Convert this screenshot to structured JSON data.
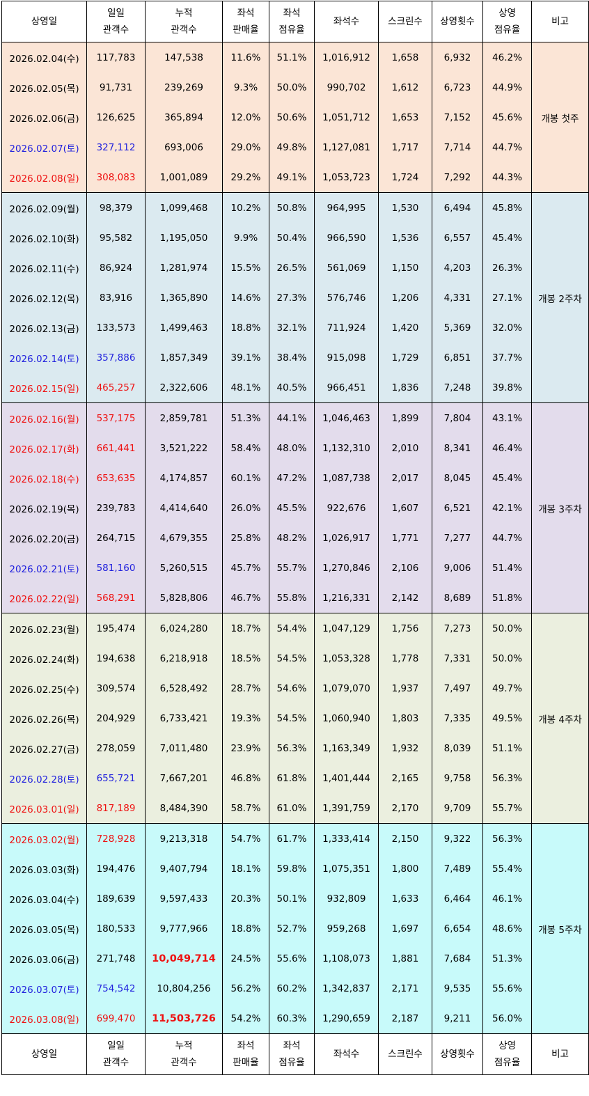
{
  "headers": [
    [
      "상영일"
    ],
    [
      "일일",
      "관객수"
    ],
    [
      "누적",
      "관객수"
    ],
    [
      "좌석",
      "판매율"
    ],
    [
      "좌석",
      "점유율"
    ],
    [
      "좌석수"
    ],
    [
      "스크린수"
    ],
    [
      "상영횟수"
    ],
    [
      "상영",
      "점유율"
    ],
    [
      "비고"
    ]
  ],
  "weeks": [
    {
      "note": "개봉 첫주",
      "color": "#fbe5d6",
      "rows": [
        {
          "date": "2026.02.04(수)",
          "daily": "117,783",
          "cumulative": "147,538",
          "sales_rate": "11.6%",
          "occupancy": "51.1%",
          "seats": "1,016,912",
          "screens": "1,658",
          "shows": "6,932",
          "share": "46.2%",
          "day_style": "weekday"
        },
        {
          "date": "2026.02.05(목)",
          "daily": "91,731",
          "cumulative": "239,269",
          "sales_rate": "9.3%",
          "occupancy": "50.0%",
          "seats": "990,702",
          "screens": "1,612",
          "shows": "6,723",
          "share": "44.9%",
          "day_style": "weekday"
        },
        {
          "date": "2026.02.06(금)",
          "daily": "126,625",
          "cumulative": "365,894",
          "sales_rate": "12.0%",
          "occupancy": "50.6%",
          "seats": "1,051,712",
          "screens": "1,653",
          "shows": "7,152",
          "share": "45.6%",
          "day_style": "weekday"
        },
        {
          "date": "2026.02.07(토)",
          "daily": "327,112",
          "cumulative": "693,006",
          "sales_rate": "29.0%",
          "occupancy": "49.8%",
          "seats": "1,127,081",
          "screens": "1,717",
          "shows": "7,714",
          "share": "44.7%",
          "day_style": "saturday"
        },
        {
          "date": "2026.02.08(일)",
          "daily": "308,083",
          "cumulative": "1,001,089",
          "sales_rate": "29.2%",
          "occupancy": "49.1%",
          "seats": "1,053,723",
          "screens": "1,724",
          "shows": "7,292",
          "share": "44.3%",
          "day_style": "holiday"
        }
      ]
    },
    {
      "note": "개봉 2주차",
      "color": "#dbeaf0",
      "rows": [
        {
          "date": "2026.02.09(월)",
          "daily": "98,379",
          "cumulative": "1,099,468",
          "sales_rate": "10.2%",
          "occupancy": "50.8%",
          "seats": "964,995",
          "screens": "1,530",
          "shows": "6,494",
          "share": "45.8%",
          "day_style": "weekday"
        },
        {
          "date": "2026.02.10(화)",
          "daily": "95,582",
          "cumulative": "1,195,050",
          "sales_rate": "9.9%",
          "occupancy": "50.4%",
          "seats": "966,590",
          "screens": "1,536",
          "shows": "6,557",
          "share": "45.4%",
          "day_style": "weekday"
        },
        {
          "date": "2026.02.11(수)",
          "daily": "86,924",
          "cumulative": "1,281,974",
          "sales_rate": "15.5%",
          "occupancy": "26.5%",
          "seats": "561,069",
          "screens": "1,150",
          "shows": "4,203",
          "share": "26.3%",
          "day_style": "weekday"
        },
        {
          "date": "2026.02.12(목)",
          "daily": "83,916",
          "cumulative": "1,365,890",
          "sales_rate": "14.6%",
          "occupancy": "27.3%",
          "seats": "576,746",
          "screens": "1,206",
          "shows": "4,331",
          "share": "27.1%",
          "day_style": "weekday"
        },
        {
          "date": "2026.02.13(금)",
          "daily": "133,573",
          "cumulative": "1,499,463",
          "sales_rate": "18.8%",
          "occupancy": "32.1%",
          "seats": "711,924",
          "screens": "1,420",
          "shows": "5,369",
          "share": "32.0%",
          "day_style": "weekday"
        },
        {
          "date": "2026.02.14(토)",
          "daily": "357,886",
          "cumulative": "1,857,349",
          "sales_rate": "39.1%",
          "occupancy": "38.4%",
          "seats": "915,098",
          "screens": "1,729",
          "shows": "6,851",
          "share": "37.7%",
          "day_style": "saturday"
        },
        {
          "date": "2026.02.15(일)",
          "daily": "465,257",
          "cumulative": "2,322,606",
          "sales_rate": "48.1%",
          "occupancy": "40.5%",
          "seats": "966,451",
          "screens": "1,836",
          "shows": "7,248",
          "share": "39.8%",
          "day_style": "holiday"
        }
      ]
    },
    {
      "note": "개봉 3주차",
      "color": "#e3dcec",
      "rows": [
        {
          "date": "2026.02.16(월)",
          "daily": "537,175",
          "cumulative": "2,859,781",
          "sales_rate": "51.3%",
          "occupancy": "44.1%",
          "seats": "1,046,463",
          "screens": "1,899",
          "shows": "7,804",
          "share": "43.1%",
          "day_style": "holiday"
        },
        {
          "date": "2026.02.17(화)",
          "daily": "661,441",
          "cumulative": "3,521,222",
          "sales_rate": "58.4%",
          "occupancy": "48.0%",
          "seats": "1,132,310",
          "screens": "2,010",
          "shows": "8,341",
          "share": "46.4%",
          "day_style": "holiday"
        },
        {
          "date": "2026.02.18(수)",
          "daily": "653,635",
          "cumulative": "4,174,857",
          "sales_rate": "60.1%",
          "occupancy": "47.2%",
          "seats": "1,087,738",
          "screens": "2,017",
          "shows": "8,045",
          "share": "45.4%",
          "day_style": "holiday"
        },
        {
          "date": "2026.02.19(목)",
          "daily": "239,783",
          "cumulative": "4,414,640",
          "sales_rate": "26.0%",
          "occupancy": "45.5%",
          "seats": "922,676",
          "screens": "1,607",
          "shows": "6,521",
          "share": "42.1%",
          "day_style": "weekday"
        },
        {
          "date": "2026.02.20(금)",
          "daily": "264,715",
          "cumulative": "4,679,355",
          "sales_rate": "25.8%",
          "occupancy": "48.2%",
          "seats": "1,026,917",
          "screens": "1,771",
          "shows": "7,277",
          "share": "44.7%",
          "day_style": "weekday"
        },
        {
          "date": "2026.02.21(토)",
          "daily": "581,160",
          "cumulative": "5,260,515",
          "sales_rate": "45.7%",
          "occupancy": "55.7%",
          "seats": "1,270,846",
          "screens": "2,106",
          "shows": "9,006",
          "share": "51.4%",
          "day_style": "saturday"
        },
        {
          "date": "2026.02.22(일)",
          "daily": "568,291",
          "cumulative": "5,828,806",
          "sales_rate": "46.7%",
          "occupancy": "55.8%",
          "seats": "1,216,331",
          "screens": "2,142",
          "shows": "8,689",
          "share": "51.8%",
          "day_style": "holiday"
        }
      ]
    },
    {
      "note": "개봉 4주차",
      "color": "#ebefdf",
      "rows": [
        {
          "date": "2026.02.23(월)",
          "daily": "195,474",
          "cumulative": "6,024,280",
          "sales_rate": "18.7%",
          "occupancy": "54.4%",
          "seats": "1,047,129",
          "screens": "1,756",
          "shows": "7,273",
          "share": "50.0%",
          "day_style": "weekday"
        },
        {
          "date": "2026.02.24(화)",
          "daily": "194,638",
          "cumulative": "6,218,918",
          "sales_rate": "18.5%",
          "occupancy": "54.5%",
          "seats": "1,053,328",
          "screens": "1,778",
          "shows": "7,331",
          "share": "50.0%",
          "day_style": "weekday"
        },
        {
          "date": "2026.02.25(수)",
          "daily": "309,574",
          "cumulative": "6,528,492",
          "sales_rate": "28.7%",
          "occupancy": "54.6%",
          "seats": "1,079,070",
          "screens": "1,937",
          "shows": "7,497",
          "share": "49.7%",
          "day_style": "weekday"
        },
        {
          "date": "2026.02.26(목)",
          "daily": "204,929",
          "cumulative": "6,733,421",
          "sales_rate": "19.3%",
          "occupancy": "54.5%",
          "seats": "1,060,940",
          "screens": "1,803",
          "shows": "7,335",
          "share": "49.5%",
          "day_style": "weekday"
        },
        {
          "date": "2026.02.27(금)",
          "daily": "278,059",
          "cumulative": "7,011,480",
          "sales_rate": "23.9%",
          "occupancy": "56.3%",
          "seats": "1,163,349",
          "screens": "1,932",
          "shows": "8,039",
          "share": "51.1%",
          "day_style": "weekday"
        },
        {
          "date": "2026.02.28(토)",
          "daily": "655,721",
          "cumulative": "7,667,201",
          "sales_rate": "46.8%",
          "occupancy": "61.8%",
          "seats": "1,401,444",
          "screens": "2,165",
          "shows": "9,758",
          "share": "56.3%",
          "day_style": "saturday"
        },
        {
          "date": "2026.03.01(일)",
          "daily": "817,189",
          "cumulative": "8,484,390",
          "sales_rate": "58.7%",
          "occupancy": "61.0%",
          "seats": "1,391,759",
          "screens": "2,170",
          "shows": "9,709",
          "share": "55.7%",
          "day_style": "holiday"
        }
      ]
    },
    {
      "note": "개봉 5주차",
      "color": "#c8fafa",
      "rows": [
        {
          "date": "2026.03.02(월)",
          "daily": "728,928",
          "cumulative": "9,213,318",
          "sales_rate": "54.7%",
          "occupancy": "61.7%",
          "seats": "1,333,414",
          "screens": "2,150",
          "shows": "9,322",
          "share": "56.3%",
          "day_style": "holiday"
        },
        {
          "date": "2026.03.03(화)",
          "daily": "194,476",
          "cumulative": "9,407,794",
          "sales_rate": "18.1%",
          "occupancy": "59.8%",
          "seats": "1,075,351",
          "screens": "1,800",
          "shows": "7,489",
          "share": "55.4%",
          "day_style": "weekday"
        },
        {
          "date": "2026.03.04(수)",
          "daily": "189,639",
          "cumulative": "9,597,433",
          "sales_rate": "20.3%",
          "occupancy": "50.1%",
          "seats": "932,809",
          "screens": "1,633",
          "shows": "6,464",
          "share": "46.1%",
          "day_style": "weekday"
        },
        {
          "date": "2026.03.05(목)",
          "daily": "180,533",
          "cumulative": "9,777,966",
          "sales_rate": "18.8%",
          "occupancy": "52.7%",
          "seats": "959,268",
          "screens": "1,697",
          "shows": "6,654",
          "share": "48.6%",
          "day_style": "weekday"
        },
        {
          "date": "2026.03.06(금)",
          "daily": "271,748",
          "cumulative": "10,049,714",
          "sales_rate": "24.5%",
          "occupancy": "55.6%",
          "seats": "1,108,073",
          "screens": "1,881",
          "shows": "7,684",
          "share": "51.3%",
          "day_style": "weekday",
          "highlight_cumulative": true
        },
        {
          "date": "2026.03.07(토)",
          "daily": "754,542",
          "cumulative": "10,804,256",
          "sales_rate": "56.2%",
          "occupancy": "60.2%",
          "seats": "1,342,837",
          "screens": "2,171",
          "shows": "9,535",
          "share": "55.6%",
          "day_style": "saturday"
        },
        {
          "date": "2026.03.08(일)",
          "daily": "699,470",
          "cumulative": "11,503,726",
          "sales_rate": "54.2%",
          "occupancy": "60.3%",
          "seats": "1,290,659",
          "screens": "2,187",
          "shows": "9,211",
          "share": "56.0%",
          "day_style": "holiday",
          "highlight_cumulative": true
        }
      ]
    }
  ],
  "styles": {
    "saturday_color": "#2222dd",
    "holiday_color": "#ee1111"
  }
}
